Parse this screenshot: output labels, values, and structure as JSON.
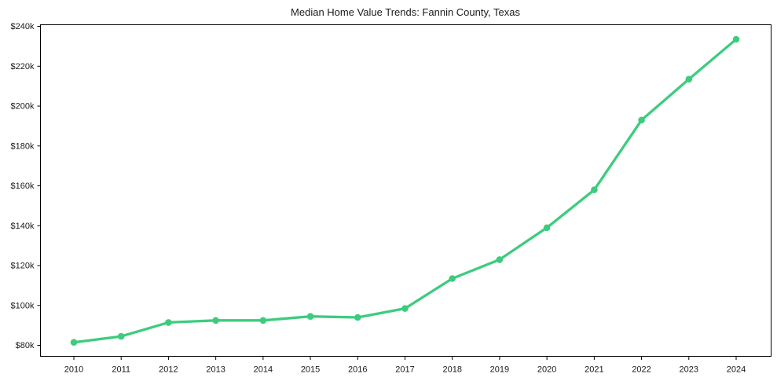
{
  "page": {
    "background_color": "#ffffff"
  },
  "chart_data": {
    "type": "line",
    "title": "Median Home Value Trends: Fannin County, Texas",
    "x": [
      2010,
      2011,
      2012,
      2013,
      2014,
      2015,
      2016,
      2017,
      2018,
      2019,
      2020,
      2021,
      2022,
      2023,
      2024
    ],
    "values": [
      81500,
      84500,
      91500,
      92500,
      92500,
      94500,
      94000,
      98500,
      113500,
      123000,
      139000,
      158000,
      193000,
      213500,
      233500
    ],
    "xlabel": "",
    "ylabel": "",
    "ylim": [
      74500,
      240800
    ],
    "xtick_labels": [
      "2010",
      "2011",
      "2012",
      "2013",
      "2014",
      "2015",
      "2016",
      "2017",
      "2018",
      "2019",
      "2020",
      "2021",
      "2022",
      "2023",
      "2024"
    ],
    "ytick_values": [
      80000,
      100000,
      120000,
      140000,
      160000,
      180000,
      200000,
      220000,
      240000
    ],
    "ytick_labels": [
      "$80k",
      "$100k",
      "$120k",
      "$140k",
      "$160k",
      "$180k",
      "$200k",
      "$220k",
      "$240k"
    ],
    "grid": false,
    "legend_visible": false,
    "line_color": "#3dcc7e",
    "marker_style": "circle",
    "text_color": "#1a1a1a",
    "frame_color": "#000000"
  }
}
